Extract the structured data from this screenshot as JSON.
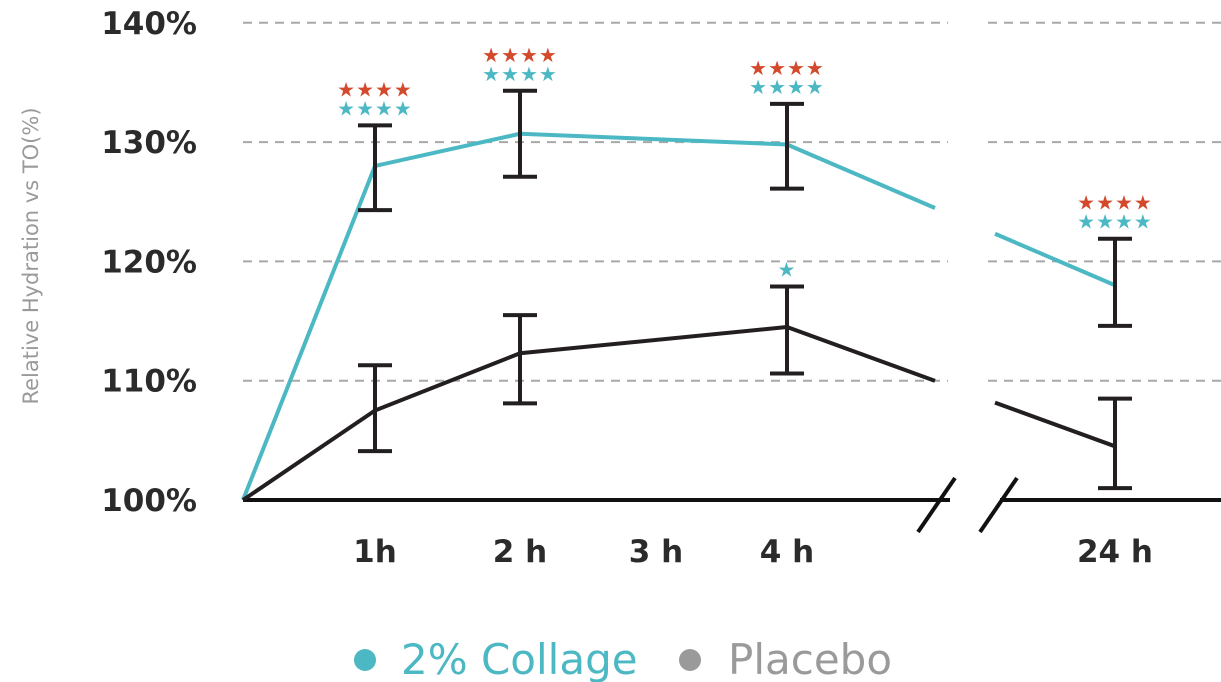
{
  "chart_data": {
    "type": "line",
    "ylabel": "Relative Hydration vs TO(%)",
    "xlabel": "",
    "ylim": [
      100,
      140
    ],
    "yticks": [
      "100%",
      "110%",
      "120%",
      "130%",
      "140%"
    ],
    "xticks": [
      "1h",
      "2 h",
      "3 h",
      "4 h",
      "24 h"
    ],
    "x": [
      "0h",
      "1h",
      "2 h",
      "4 h",
      "24 h"
    ],
    "grid": true,
    "axis_break": "between 4 h and 24 h",
    "legend_position": "bottom-center",
    "series": [
      {
        "name": "2% Collage",
        "color": "#4bb8c4",
        "values": [
          100,
          128,
          130.7,
          129.8,
          118
        ],
        "error_low": [
          null,
          124.3,
          127.1,
          126.1,
          114.6
        ],
        "error_high": [
          null,
          131.4,
          134.3,
          133.2,
          121.9
        ]
      },
      {
        "name": "Placebo",
        "color": "#231f20",
        "values": [
          100,
          107.5,
          112.3,
          114.5,
          104.5
        ],
        "error_low": [
          null,
          104.1,
          108.1,
          110.6,
          101.0
        ],
        "error_high": [
          null,
          111.3,
          115.5,
          117.9,
          108.5
        ]
      }
    ],
    "significance": [
      {
        "x": "1h",
        "rows": [
          {
            "text": "★★★★",
            "color": "#d2492c"
          },
          {
            "text": "★★★★",
            "color": "#4bb8c4"
          }
        ]
      },
      {
        "x": "2 h",
        "rows": [
          {
            "text": "★★★★",
            "color": "#d2492c"
          },
          {
            "text": "★★★★",
            "color": "#4bb8c4"
          }
        ]
      },
      {
        "x": "4 h",
        "rows": [
          {
            "text": "★★★★",
            "color": "#d2492c"
          },
          {
            "text": "★★★★",
            "color": "#4bb8c4"
          }
        ]
      },
      {
        "x": "4 h",
        "series": "Placebo",
        "rows": [
          {
            "text": "★",
            "color": "#4bb8c4"
          }
        ]
      },
      {
        "x": "24 h",
        "rows": [
          {
            "text": "★★★★",
            "color": "#d2492c"
          },
          {
            "text": "★★★★",
            "color": "#4bb8c4"
          }
        ]
      }
    ],
    "legend_marker_colors": [
      "#4bb8c4",
      "#9a9a9a"
    ],
    "legend_text_colors": [
      "#4bb8c4",
      "#9a9a9a"
    ]
  }
}
